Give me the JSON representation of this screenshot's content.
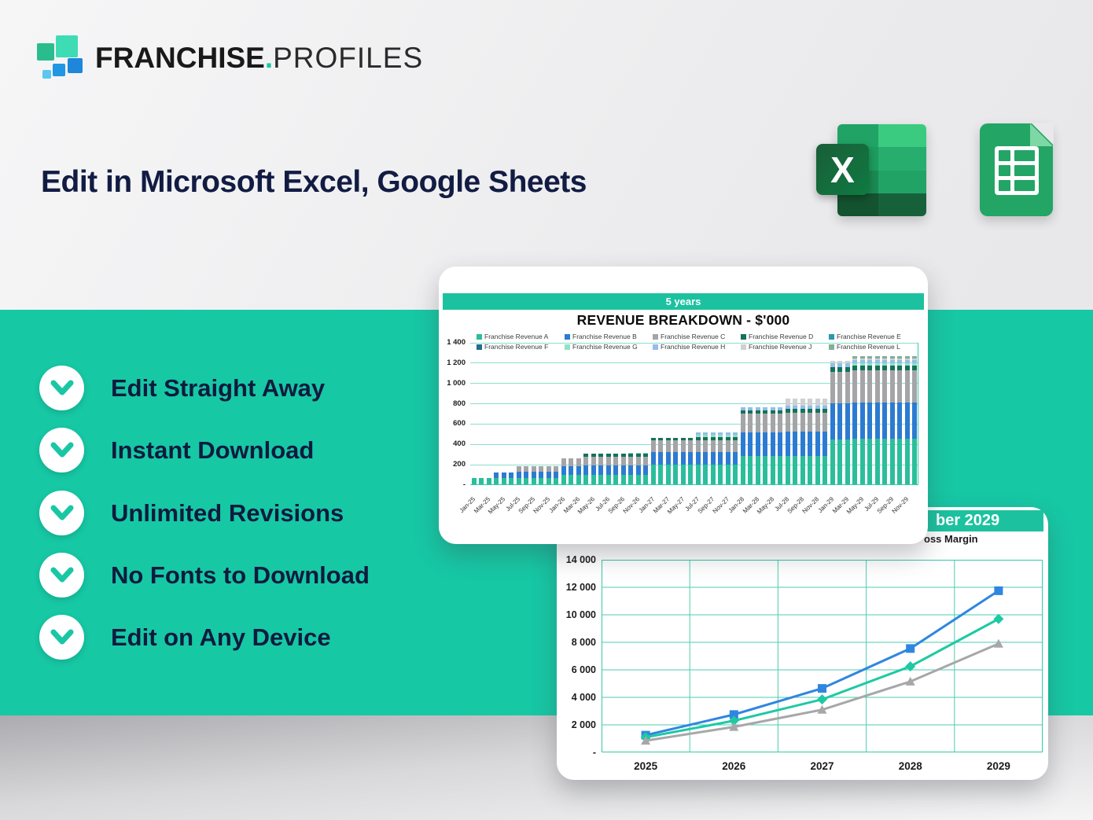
{
  "logo": {
    "brand_bold": "FRANCHISE",
    "brand_dot": ".",
    "brand_light": "PROFILES"
  },
  "headline": {
    "text": "Edit in Microsoft Excel, Google Sheets"
  },
  "icons": {
    "excel_letter": "X"
  },
  "colors": {
    "accent_teal": "#17c8a5",
    "headline_navy": "#121c43",
    "excel_green": "#107c41",
    "sheets_green": "#23a566"
  },
  "features": [
    {
      "label": "Edit Straight Away"
    },
    {
      "label": "Instant Download"
    },
    {
      "label": "Unlimited Revisions"
    },
    {
      "label": "No Fonts to Download"
    },
    {
      "label": "Edit on Any Device"
    }
  ],
  "chart_data": [
    {
      "type": "bar",
      "stacked": true,
      "panel_tag": "5 years",
      "title": "REVENUE BREAKDOWN - $'000",
      "ylim": [
        0,
        1400
      ],
      "grid": true,
      "legend_position": "top",
      "yticks": [
        {
          "value": 0,
          "label": "-"
        },
        {
          "value": 200,
          "label": "200"
        },
        {
          "value": 400,
          "label": "400"
        },
        {
          "value": 600,
          "label": "600"
        },
        {
          "value": 800,
          "label": "800"
        },
        {
          "value": 1000,
          "label": "1 000"
        },
        {
          "value": 1200,
          "label": "1 200"
        },
        {
          "value": 1400,
          "label": "1 400"
        }
      ],
      "x_tick_labels": [
        "Jan-25",
        "Mar-25",
        "May-25",
        "Jul-25",
        "Sep-25",
        "Nov-25",
        "Jan-26",
        "Mar-26",
        "May-26",
        "Jul-26",
        "Sep-26",
        "Nov-26",
        "Jan-27",
        "Mar-27",
        "May-27",
        "Jul-27",
        "Sep-27",
        "Nov-27",
        "Jan-28",
        "Mar-28",
        "May-28",
        "Jul-28",
        "Sep-28",
        "Nov-28",
        "Jan-29",
        "Mar-29",
        "May-29",
        "Jul-29",
        "Sep-29",
        "Nov-29"
      ],
      "months_count": 60,
      "stack_order": [
        "Franchise Revenue A",
        "Franchise Revenue B",
        "Franchise Revenue C",
        "Franchise Revenue D",
        "Franchise Revenue G",
        "Franchise Revenue H",
        "Franchise Revenue J",
        "Franchise Revenue L",
        "Franchise Revenue E",
        "Franchise Revenue F"
      ],
      "series": [
        {
          "name": "Franchise Revenue A",
          "color": "#2bbe9b",
          "values": [
            60,
            60,
            60,
            62,
            62,
            62,
            64,
            64,
            64,
            64,
            64,
            64,
            90,
            90,
            90,
            95,
            95,
            95,
            95,
            95,
            95,
            95,
            95,
            95,
            195,
            195,
            195,
            195,
            195,
            195,
            195,
            195,
            195,
            195,
            195,
            195,
            275,
            275,
            275,
            275,
            275,
            275,
            280,
            280,
            280,
            280,
            280,
            280,
            440,
            440,
            440,
            445,
            445,
            445,
            445,
            445,
            445,
            445,
            445,
            445
          ]
        },
        {
          "name": "Franchise Revenue B",
          "color": "#2c7bd2",
          "values": [
            0,
            0,
            0,
            58,
            58,
            58,
            58,
            58,
            58,
            58,
            58,
            58,
            85,
            85,
            85,
            88,
            88,
            88,
            88,
            88,
            88,
            88,
            88,
            88,
            125,
            125,
            125,
            125,
            125,
            125,
            125,
            125,
            125,
            125,
            125,
            125,
            235,
            235,
            235,
            235,
            235,
            235,
            235,
            235,
            235,
            235,
            235,
            235,
            360,
            360,
            360,
            360,
            360,
            360,
            360,
            360,
            360,
            360,
            360,
            360
          ]
        },
        {
          "name": "Franchise Revenue C",
          "color": "#a5a5a7",
          "values": [
            0,
            0,
            0,
            0,
            0,
            0,
            55,
            55,
            55,
            55,
            55,
            55,
            82,
            82,
            82,
            85,
            85,
            85,
            85,
            85,
            85,
            85,
            85,
            85,
            115,
            115,
            115,
            115,
            115,
            115,
            115,
            115,
            115,
            115,
            115,
            115,
            185,
            185,
            185,
            185,
            185,
            185,
            190,
            190,
            190,
            190,
            190,
            190,
            310,
            310,
            310,
            315,
            315,
            315,
            315,
            315,
            315,
            315,
            315,
            315
          ]
        },
        {
          "name": "Franchise Revenue D",
          "color": "#11735a",
          "values": [
            0,
            0,
            0,
            0,
            0,
            0,
            0,
            0,
            0,
            0,
            0,
            0,
            0,
            0,
            0,
            30,
            30,
            30,
            30,
            30,
            30,
            30,
            30,
            30,
            25,
            25,
            25,
            25,
            25,
            25,
            30,
            30,
            30,
            30,
            30,
            30,
            35,
            35,
            35,
            35,
            35,
            35,
            35,
            35,
            35,
            35,
            35,
            35,
            45,
            45,
            45,
            45,
            45,
            45,
            45,
            45,
            45,
            45,
            45,
            45
          ]
        },
        {
          "name": "Franchise Revenue E",
          "color": "#2e97ad",
          "values": [
            0,
            0,
            0,
            0,
            0,
            0,
            0,
            0,
            0,
            0,
            0,
            0,
            0,
            0,
            0,
            0,
            0,
            0,
            0,
            0,
            0,
            0,
            0,
            0,
            0,
            0,
            0,
            0,
            0,
            0,
            0,
            0,
            0,
            0,
            0,
            0,
            0,
            0,
            0,
            0,
            0,
            0,
            0,
            0,
            0,
            0,
            0,
            0,
            0,
            0,
            0,
            0,
            0,
            0,
            0,
            0,
            0,
            0,
            0,
            0
          ]
        },
        {
          "name": "Franchise Revenue F",
          "color": "#1f6e8e",
          "values": [
            0,
            0,
            0,
            0,
            0,
            0,
            0,
            0,
            0,
            0,
            0,
            0,
            0,
            0,
            0,
            0,
            0,
            0,
            0,
            0,
            0,
            0,
            0,
            0,
            0,
            0,
            0,
            0,
            0,
            0,
            0,
            0,
            0,
            0,
            0,
            0,
            0,
            0,
            0,
            0,
            0,
            0,
            0,
            0,
            0,
            0,
            0,
            0,
            0,
            0,
            0,
            0,
            0,
            0,
            0,
            0,
            0,
            0,
            0,
            0
          ]
        },
        {
          "name": "Franchise Revenue G",
          "color": "#90e2c4",
          "values": [
            0,
            0,
            0,
            0,
            0,
            0,
            0,
            0,
            0,
            0,
            0,
            0,
            0,
            0,
            0,
            0,
            0,
            0,
            0,
            0,
            0,
            12,
            12,
            12,
            0,
            0,
            0,
            0,
            0,
            0,
            25,
            25,
            25,
            25,
            25,
            25,
            0,
            0,
            0,
            0,
            0,
            0,
            0,
            0,
            0,
            0,
            0,
            0,
            0,
            0,
            0,
            25,
            25,
            25,
            25,
            25,
            25,
            25,
            25,
            25
          ]
        },
        {
          "name": "Franchise Revenue H",
          "color": "#93bdeb",
          "values": [
            0,
            0,
            0,
            0,
            0,
            0,
            0,
            0,
            0,
            0,
            0,
            0,
            0,
            0,
            0,
            0,
            0,
            0,
            0,
            0,
            0,
            0,
            0,
            0,
            0,
            0,
            0,
            0,
            0,
            0,
            20,
            20,
            20,
            20,
            20,
            20,
            25,
            25,
            25,
            25,
            25,
            25,
            30,
            30,
            30,
            30,
            30,
            30,
            35,
            35,
            35,
            35,
            35,
            35,
            35,
            35,
            35,
            35,
            35,
            35
          ]
        },
        {
          "name": "Franchise Revenue J",
          "color": "#d0d0d2",
          "values": [
            0,
            0,
            0,
            0,
            0,
            0,
            0,
            0,
            0,
            0,
            0,
            0,
            0,
            0,
            0,
            0,
            0,
            0,
            0,
            0,
            0,
            0,
            0,
            0,
            0,
            0,
            0,
            0,
            0,
            0,
            0,
            0,
            0,
            0,
            0,
            0,
            0,
            0,
            0,
            0,
            0,
            0,
            70,
            70,
            70,
            70,
            70,
            70,
            25,
            25,
            25,
            15,
            15,
            15,
            15,
            15,
            15,
            15,
            15,
            15
          ]
        },
        {
          "name": "Franchise Revenue L",
          "color": "#80af9d",
          "values": [
            0,
            0,
            0,
            0,
            0,
            0,
            0,
            0,
            0,
            0,
            0,
            0,
            0,
            0,
            0,
            0,
            0,
            0,
            0,
            0,
            0,
            0,
            0,
            0,
            0,
            0,
            0,
            0,
            0,
            0,
            0,
            0,
            0,
            0,
            0,
            0,
            0,
            0,
            0,
            0,
            0,
            0,
            0,
            0,
            0,
            0,
            0,
            0,
            0,
            0,
            0,
            20,
            20,
            20,
            20,
            20,
            20,
            20,
            20,
            20
          ]
        }
      ]
    },
    {
      "type": "line",
      "banner_fragment": "ber 2029",
      "legend_fragment": "oss Margin",
      "x": [
        "2025",
        "2026",
        "2027",
        "2028",
        "2029"
      ],
      "ylim": [
        0,
        14000
      ],
      "grid": true,
      "yticks": [
        {
          "value": 0,
          "label": "-"
        },
        {
          "value": 2000,
          "label": "2 000"
        },
        {
          "value": 4000,
          "label": "4 000"
        },
        {
          "value": 6000,
          "label": "6 000"
        },
        {
          "value": 8000,
          "label": "8 000"
        },
        {
          "value": 10000,
          "label": "10 000"
        },
        {
          "value": 12000,
          "label": "12 000"
        },
        {
          "value": 14000,
          "label": "14 000"
        }
      ],
      "series": [
        {
          "name": "series-blue-squares",
          "marker": "square",
          "color": "#2f86e0",
          "values": [
            1250,
            2750,
            4650,
            7550,
            11750
          ]
        },
        {
          "name": "series-teal-diamonds",
          "marker": "diamond",
          "color": "#1ec9a4",
          "values": [
            1100,
            2300,
            3850,
            6250,
            9700
          ]
        },
        {
          "name": "series-gray-triangles",
          "marker": "triangle",
          "color": "#a7a7a9",
          "values": [
            850,
            1850,
            3100,
            5150,
            7900
          ]
        }
      ]
    }
  ]
}
